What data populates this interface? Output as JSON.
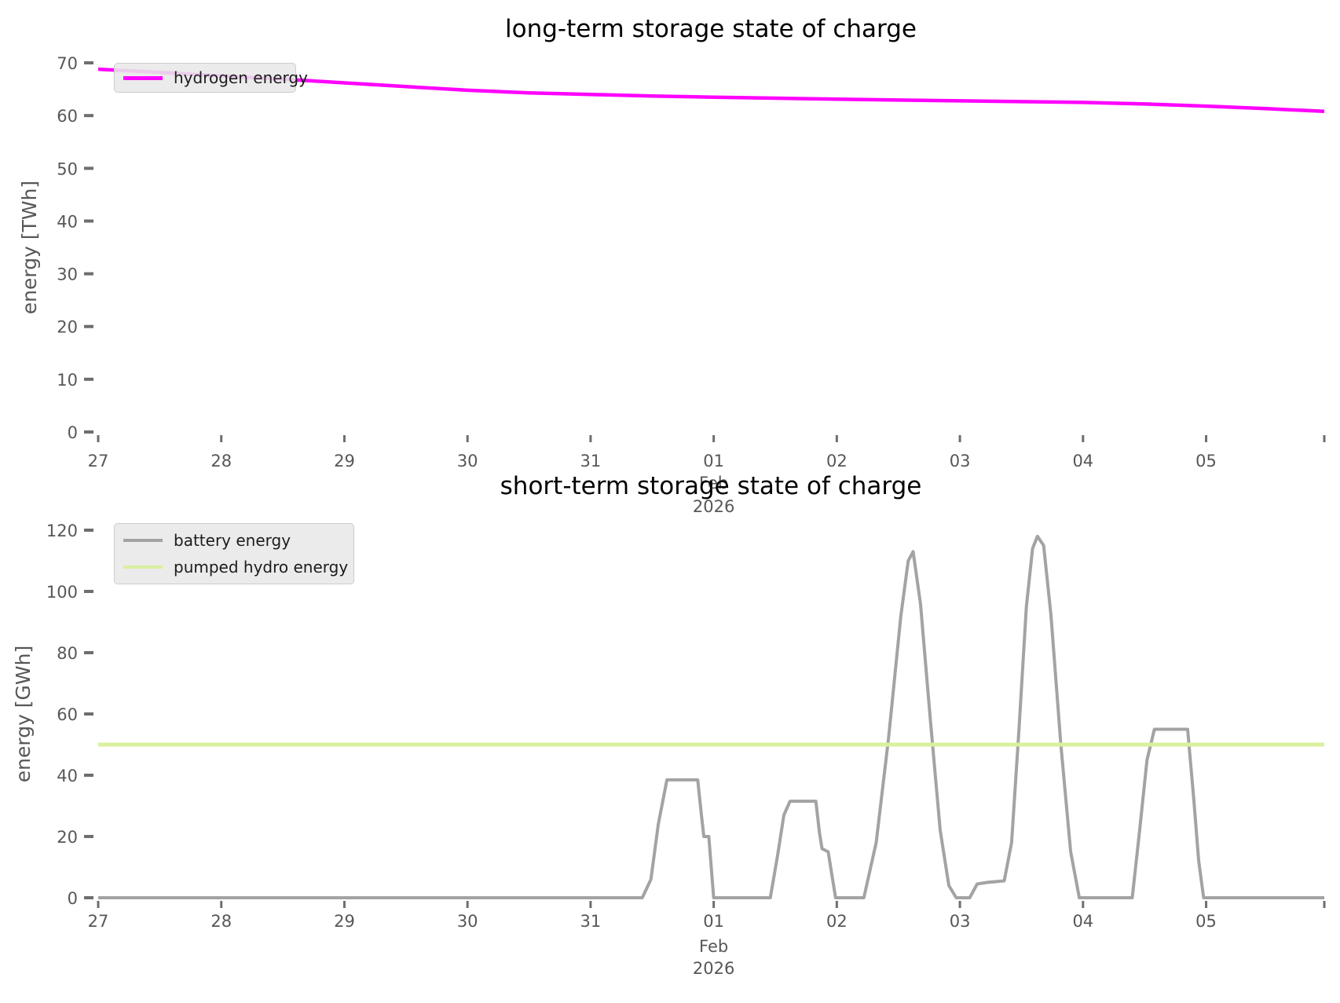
{
  "figure": {
    "background": "#ffffff",
    "tick_color": "#6e6e6e",
    "tick_label_color": "#575757",
    "axis_label_color": "#575757",
    "title_color": "#000000"
  },
  "chart_data": [
    {
      "id": "long-term-storage",
      "type": "line",
      "title": "long-term storage state of charge",
      "ylabel": "energy [TWh]",
      "x_unit": "days since 2026-01-27 00:00",
      "xlim": [
        0,
        9.96
      ],
      "ylim": [
        0,
        70
      ],
      "y_ticks": [
        0,
        10,
        20,
        30,
        40,
        50,
        60,
        70
      ],
      "x_tick_days": [
        0,
        1,
        2,
        3,
        4,
        5,
        6,
        7,
        8,
        9
      ],
      "x_tick_labels": [
        "27",
        "28",
        "29",
        "30",
        "31",
        "01",
        "02",
        "03",
        "04",
        "05"
      ],
      "month_label_tick_index": 5,
      "xlabel_period": [
        "Feb",
        "2026"
      ],
      "grid": false,
      "legend_position": "upper left",
      "series": [
        {
          "name": "hydrogen energy",
          "color": "#ff00ff",
          "line_width": 4.5,
          "points": [
            [
              0,
              68.8
            ],
            [
              0.5,
              68.2
            ],
            [
              1,
              67.5
            ],
            [
              1.5,
              66.9
            ],
            [
              2,
              66.2
            ],
            [
              2.5,
              65.5
            ],
            [
              3,
              64.8
            ],
            [
              3.5,
              64.3
            ],
            [
              4,
              64.0
            ],
            [
              4.5,
              63.7
            ],
            [
              5,
              63.5
            ],
            [
              5.5,
              63.3
            ],
            [
              6,
              63.1
            ],
            [
              6.5,
              62.95
            ],
            [
              7,
              62.8
            ],
            [
              7.5,
              62.65
            ],
            [
              8,
              62.5
            ],
            [
              8.5,
              62.2
            ],
            [
              9,
              61.8
            ],
            [
              9.5,
              61.3
            ],
            [
              9.96,
              60.8
            ]
          ]
        }
      ]
    },
    {
      "id": "short-term-storage",
      "type": "line",
      "title": "short-term storage state of charge",
      "ylabel": "energy [GWh]",
      "x_unit": "days since 2026-01-27 00:00",
      "xlim": [
        0,
        9.96
      ],
      "ylim": [
        0,
        120
      ],
      "y_ticks": [
        0,
        20,
        40,
        60,
        80,
        100,
        120
      ],
      "x_tick_days": [
        0,
        1,
        2,
        3,
        4,
        5,
        6,
        7,
        8,
        9
      ],
      "x_tick_labels": [
        "27",
        "28",
        "29",
        "30",
        "31",
        "01",
        "02",
        "03",
        "04",
        "05"
      ],
      "month_label_tick_index": 5,
      "xlabel_period": [
        "Feb",
        "2026"
      ],
      "grid": false,
      "legend_position": "upper left",
      "series": [
        {
          "name": "battery energy",
          "color": "#a3a3a3",
          "line_width": 4,
          "points": [
            [
              0,
              0
            ],
            [
              4.42,
              0
            ],
            [
              4.49,
              6
            ],
            [
              4.55,
              24
            ],
            [
              4.62,
              38.5
            ],
            [
              4.87,
              38.5
            ],
            [
              4.9,
              27
            ],
            [
              4.92,
              20
            ],
            [
              4.96,
              20
            ],
            [
              5.0,
              0
            ],
            [
              5.46,
              0
            ],
            [
              5.52,
              14
            ],
            [
              5.57,
              27
            ],
            [
              5.62,
              31.5
            ],
            [
              5.83,
              31.5
            ],
            [
              5.86,
              21
            ],
            [
              5.88,
              16
            ],
            [
              5.93,
              15
            ],
            [
              5.99,
              0
            ],
            [
              6.22,
              0
            ],
            [
              6.32,
              18
            ],
            [
              6.42,
              52
            ],
            [
              6.52,
              92
            ],
            [
              6.58,
              110
            ],
            [
              6.62,
              113
            ],
            [
              6.68,
              96
            ],
            [
              6.76,
              58
            ],
            [
              6.84,
              22
            ],
            [
              6.91,
              4
            ],
            [
              6.97,
              0
            ],
            [
              7.08,
              0
            ],
            [
              7.14,
              4.5
            ],
            [
              7.22,
              5
            ],
            [
              7.36,
              5.5
            ],
            [
              7.42,
              18
            ],
            [
              7.48,
              55
            ],
            [
              7.54,
              95
            ],
            [
              7.59,
              114
            ],
            [
              7.63,
              118
            ],
            [
              7.68,
              115
            ],
            [
              7.74,
              92
            ],
            [
              7.82,
              50
            ],
            [
              7.9,
              15
            ],
            [
              7.97,
              0
            ],
            [
              8.4,
              0
            ],
            [
              8.46,
              22
            ],
            [
              8.52,
              45
            ],
            [
              8.58,
              55
            ],
            [
              8.85,
              55
            ],
            [
              8.9,
              32
            ],
            [
              8.94,
              12
            ],
            [
              8.98,
              0
            ],
            [
              9.96,
              0
            ]
          ]
        },
        {
          "name": "pumped hydro energy",
          "color": "#d9f09e",
          "line_width": 5,
          "points": [
            [
              0,
              50
            ],
            [
              9.96,
              50
            ]
          ]
        }
      ]
    }
  ]
}
